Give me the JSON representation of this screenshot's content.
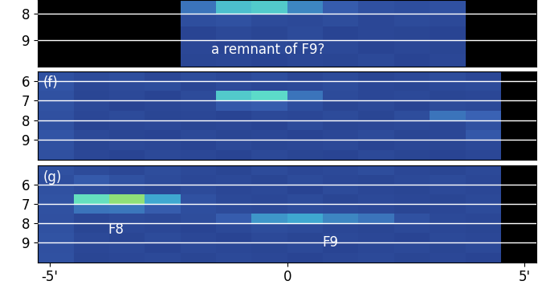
{
  "chart_data": [
    {
      "type": "heatmap",
      "annotations": [
        {
          "text": "a remnant of F9?",
          "x": -0.4,
          "y": 9.35
        }
      ],
      "x_edges": [
        -5.25,
        -4.5,
        -3.75,
        -3.0,
        -2.25,
        -1.5,
        -0.75,
        0.0,
        0.75,
        1.5,
        2.25,
        3.0,
        3.75,
        4.5,
        5.25
      ],
      "y_edges": [
        7.5,
        8.0,
        8.5,
        9.0,
        9.5,
        10.0
      ],
      "cells": [
        [
          null,
          null,
          null,
          null,
          0.45,
          0.68,
          0.72,
          0.5,
          0.36,
          0.3,
          0.28,
          0.3,
          null,
          null
        ],
        [
          null,
          null,
          null,
          null,
          0.28,
          0.3,
          0.26,
          0.25,
          0.27,
          0.24,
          0.26,
          0.25,
          null,
          null
        ],
        [
          null,
          null,
          null,
          null,
          0.22,
          0.25,
          0.23,
          0.26,
          0.22,
          0.24,
          0.23,
          0.22,
          null,
          null
        ],
        [
          null,
          null,
          null,
          null,
          0.24,
          0.22,
          0.25,
          0.23,
          0.25,
          0.22,
          0.24,
          0.23,
          null,
          null
        ],
        [
          null,
          null,
          null,
          null,
          0.23,
          0.24,
          0.22,
          0.24,
          0.23,
          0.25,
          0.22,
          0.24,
          null,
          null
        ]
      ],
      "color_range": [
        0,
        1
      ],
      "xlim": [
        -5.25,
        5.25
      ],
      "ylim": [
        10.0,
        7.5
      ],
      "yticks": [
        8,
        9
      ],
      "grid": true,
      "tick_labels": "y"
    },
    {
      "type": "heatmap",
      "label": "(f)",
      "annotations": [],
      "x_edges": [
        -5.25,
        -4.5,
        -3.75,
        -3.0,
        -2.25,
        -1.5,
        -0.75,
        0.0,
        0.75,
        1.5,
        2.25,
        3.0,
        3.75,
        4.5,
        5.25
      ],
      "y_edges": [
        5.5,
        6.0,
        6.5,
        7.0,
        7.5,
        8.0,
        8.5,
        9.0,
        9.5,
        10.0
      ],
      "cells": [
        [
          0.3,
          0.26,
          0.28,
          0.24,
          0.27,
          0.25,
          0.28,
          0.24,
          0.26,
          0.23,
          0.25,
          0.27,
          0.24,
          null
        ],
        [
          0.32,
          0.24,
          0.26,
          0.27,
          0.23,
          0.26,
          0.24,
          0.25,
          0.27,
          0.24,
          0.23,
          0.25,
          0.26,
          null
        ],
        [
          0.3,
          0.23,
          0.25,
          0.22,
          0.26,
          0.72,
          0.78,
          0.45,
          0.26,
          0.24,
          0.25,
          0.23,
          0.24,
          null
        ],
        [
          0.31,
          0.25,
          0.22,
          0.24,
          0.25,
          0.34,
          0.36,
          0.28,
          0.23,
          0.25,
          0.22,
          0.26,
          0.25,
          null
        ],
        [
          0.29,
          0.24,
          0.26,
          0.23,
          0.24,
          0.22,
          0.25,
          0.24,
          0.26,
          0.23,
          0.27,
          0.45,
          0.4,
          null
        ],
        [
          0.3,
          0.22,
          0.24,
          0.25,
          0.23,
          0.24,
          0.22,
          0.26,
          0.23,
          0.24,
          0.25,
          0.24,
          0.3,
          null
        ],
        [
          0.32,
          0.25,
          0.23,
          0.22,
          0.25,
          0.23,
          0.24,
          0.22,
          0.24,
          0.26,
          0.23,
          0.24,
          0.34,
          null
        ],
        [
          0.3,
          0.23,
          0.25,
          0.24,
          0.22,
          0.25,
          0.23,
          0.24,
          0.25,
          0.22,
          0.24,
          0.23,
          0.25,
          null
        ],
        [
          0.29,
          0.24,
          0.22,
          0.25,
          0.24,
          0.22,
          0.25,
          0.23,
          0.22,
          0.25,
          0.23,
          0.22,
          0.24,
          null
        ]
      ],
      "color_range": [
        0,
        1
      ],
      "xlim": [
        -5.25,
        5.25
      ],
      "ylim": [
        10.0,
        5.5
      ],
      "yticks": [
        6,
        7,
        8,
        9
      ],
      "grid": true,
      "tick_labels": "y"
    },
    {
      "type": "heatmap",
      "label": "(g)",
      "annotations": [
        {
          "text": "F8",
          "x": -3.6,
          "y": 8.3
        },
        {
          "text": "F9",
          "x": 0.9,
          "y": 9.0
        }
      ],
      "x_edges": [
        -5.25,
        -4.5,
        -3.75,
        -3.0,
        -2.25,
        -1.5,
        -0.75,
        0.0,
        0.75,
        1.5,
        2.25,
        3.0,
        3.75,
        4.5,
        5.25
      ],
      "y_edges": [
        5.0,
        5.5,
        6.0,
        6.5,
        7.0,
        7.5,
        8.0,
        8.5,
        9.0,
        9.5,
        10.0
      ],
      "cells": [
        [
          0.3,
          0.26,
          0.24,
          0.27,
          0.25,
          0.23,
          0.26,
          0.24,
          0.25,
          0.27,
          0.24,
          0.23,
          0.25,
          null
        ],
        [
          0.28,
          0.35,
          0.3,
          0.26,
          0.24,
          0.25,
          0.23,
          0.26,
          0.24,
          0.23,
          0.25,
          0.26,
          0.24,
          null
        ],
        [
          0.3,
          0.27,
          0.25,
          0.23,
          0.26,
          0.24,
          0.25,
          0.22,
          0.26,
          0.24,
          0.23,
          0.25,
          0.24,
          null
        ],
        [
          0.31,
          0.82,
          0.95,
          0.6,
          0.3,
          0.25,
          0.24,
          0.26,
          0.23,
          0.25,
          0.24,
          0.23,
          0.25,
          null
        ],
        [
          0.3,
          0.45,
          0.46,
          0.36,
          0.28,
          0.26,
          0.25,
          0.27,
          0.26,
          0.25,
          0.23,
          0.24,
          0.26,
          null
        ],
        [
          0.29,
          0.24,
          0.26,
          0.25,
          0.27,
          0.36,
          0.55,
          0.6,
          0.5,
          0.45,
          0.3,
          0.25,
          0.24,
          null
        ],
        [
          0.3,
          0.23,
          0.25,
          0.24,
          0.22,
          0.25,
          0.27,
          0.26,
          0.24,
          0.23,
          0.25,
          0.24,
          0.23,
          null
        ],
        [
          0.31,
          0.25,
          0.23,
          0.26,
          0.24,
          0.22,
          0.25,
          0.23,
          0.25,
          0.24,
          0.22,
          0.25,
          0.24,
          null
        ],
        [
          0.29,
          0.24,
          0.25,
          0.22,
          0.25,
          0.24,
          0.23,
          0.25,
          0.22,
          0.24,
          0.25,
          0.23,
          0.25,
          null
        ],
        [
          0.3,
          0.23,
          0.24,
          0.25,
          0.23,
          0.25,
          0.24,
          0.22,
          0.24,
          0.25,
          0.23,
          0.24,
          0.22,
          null
        ]
      ],
      "color_range": [
        0,
        1
      ],
      "xlim": [
        -5.25,
        5.25
      ],
      "ylim": [
        10.0,
        5.0
      ],
      "yticks": [
        6,
        7,
        8,
        9
      ],
      "xticks": [
        {
          "value": -5,
          "label": "-5'"
        },
        0,
        {
          "value": 5,
          "label": "5'"
        }
      ],
      "grid": true,
      "tick_labels": true
    }
  ]
}
